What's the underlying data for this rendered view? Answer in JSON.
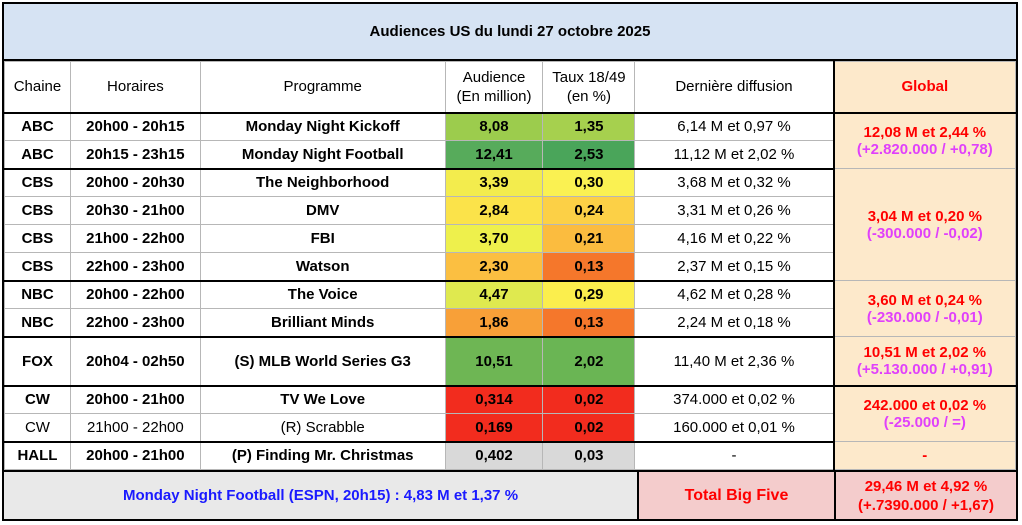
{
  "title": "Audiences US du lundi 27 octobre 2025",
  "headers": {
    "chaine": "Chaine",
    "horaires": "Horaires",
    "programme": "Programme",
    "audience_1": "Audience",
    "audience_2": "(En million)",
    "taux_1": "Taux 18/49",
    "taux_2": "(en %)",
    "derniere": "Dernière diffusion",
    "global": "Global"
  },
  "colors": {
    "header_bg": "#d6e3f3",
    "global_bg": "#fde9cb",
    "footer_bg": "#e9e9e9",
    "total_bg": "#f4cccc",
    "global_text": "#ff0000",
    "global_diff_text": "#e040fb",
    "footer_text": "#1a1aff"
  },
  "rows": [
    {
      "chaine": "ABC",
      "horaires": "20h00 - 20h15",
      "programme": "Monday Night Kickoff",
      "audience": "8,08",
      "taux": "1,35",
      "derniere": "6,14 M et 0,97 %",
      "audience_color": "#9ccc4d",
      "taux_color": "#a6d04e",
      "bold": true
    },
    {
      "chaine": "ABC",
      "horaires": "20h15 - 23h15",
      "programme": "Monday Night Football",
      "audience": "12,41",
      "taux": "2,53",
      "derniere": "11,12 M et 2,02 %",
      "audience_color": "#57ab5b",
      "taux_color": "#4aa55a",
      "bold": true
    },
    {
      "chaine": "CBS",
      "horaires": "20h00 - 20h30",
      "programme": "The Neighborhood",
      "audience": "3,39",
      "taux": "0,30",
      "derniere": "3,68 M et 0,32 %",
      "audience_color": "#f3ec4d",
      "taux_color": "#faf152",
      "bold": true
    },
    {
      "chaine": "CBS",
      "horaires": "20h30 - 21h00",
      "programme": "DMV",
      "audience": "2,84",
      "taux": "0,24",
      "derniere": "3,31 M et 0,26 %",
      "audience_color": "#fbe34a",
      "taux_color": "#fcd046",
      "bold": true
    },
    {
      "chaine": "CBS",
      "horaires": "21h00 - 22h00",
      "programme": "FBI",
      "audience": "3,70",
      "taux": "0,21",
      "derniere": "4,16 M et 0,22 %",
      "audience_color": "#eef04c",
      "taux_color": "#fbbc3f",
      "bold": true
    },
    {
      "chaine": "CBS",
      "horaires": "22h00 - 23h00",
      "programme": "Watson",
      "audience": "2,30",
      "taux": "0,13",
      "derniere": "2,37 M et 0,15 %",
      "audience_color": "#fbbf41",
      "taux_color": "#f5772b",
      "bold": true
    },
    {
      "chaine": "NBC",
      "horaires": "20h00 - 22h00",
      "programme": "The Voice",
      "audience": "4,47",
      "taux": "0,29",
      "derniere": "4,62 M et 0,28 %",
      "audience_color": "#dfe94f",
      "taux_color": "#fbee4d",
      "bold": true
    },
    {
      "chaine": "NBC",
      "horaires": "22h00 - 23h00",
      "programme": "Brilliant Minds",
      "audience": "1,86",
      "taux": "0,13",
      "derniere": "2,24 M et 0,18 %",
      "audience_color": "#f8a038",
      "taux_color": "#f5772b",
      "bold": true
    },
    {
      "chaine": "FOX",
      "horaires": "20h04 - 02h50",
      "programme": "(S) MLB World Series G3",
      "audience": "10,51",
      "taux": "2,02",
      "derniere": "11,40 M et 2,36 %",
      "audience_color": "#6eb654",
      "taux_color": "#6ab554",
      "bold": true
    },
    {
      "chaine": "CW",
      "horaires": "20h00 - 21h00",
      "programme": "TV We Love",
      "audience": "0,314",
      "taux": "0,02",
      "derniere": "374.000 et 0,02 %",
      "audience_color": "#f22c1e",
      "taux_color": "#f22c1e",
      "bold": true
    },
    {
      "chaine": "CW",
      "horaires": "21h00 - 22h00",
      "programme": "(R) Scrabble",
      "audience": "0,169",
      "taux": "0,02",
      "derniere": "160.000 et 0,01 %",
      "audience_color": "#f22c1e",
      "taux_color": "#f22c1e",
      "bold": false
    },
    {
      "chaine": "HALL",
      "horaires": "20h00 - 21h00",
      "programme": "(P) Finding Mr. Christmas",
      "audience": "0,402",
      "taux": "0,03",
      "derniere": "-",
      "audience_color": "#d9d9d9",
      "taux_color": "#d9d9d9",
      "bold": true
    }
  ],
  "globals": {
    "abc": {
      "line1": "12,08 M et 2,44 %",
      "line2": "(+2.820.000 / +0,78)"
    },
    "cbs": {
      "line1": "3,04 M et 0,20 %",
      "line2": "(-300.000 / -0,02)"
    },
    "nbc": {
      "line1": "3,60 M et 0,24 %",
      "line2": "(-230.000 / -0,01)"
    },
    "fox": {
      "line1": "10,51 M et 2,02 %",
      "line2": "(+5.130.000 / +0,91)"
    },
    "cw": {
      "line1": "242.000 et 0,02 %",
      "line2": "(-25.000 / =)"
    },
    "hall": {
      "line1": "-"
    }
  },
  "footer": {
    "note": "Monday Night Football (ESPN, 20h15) : 4,83 M et 1,37 %",
    "total_label": "Total Big Five",
    "total_line1": "29,46 M et 4,92 %",
    "total_line2": "(+.7390.000 / +1,67)"
  }
}
